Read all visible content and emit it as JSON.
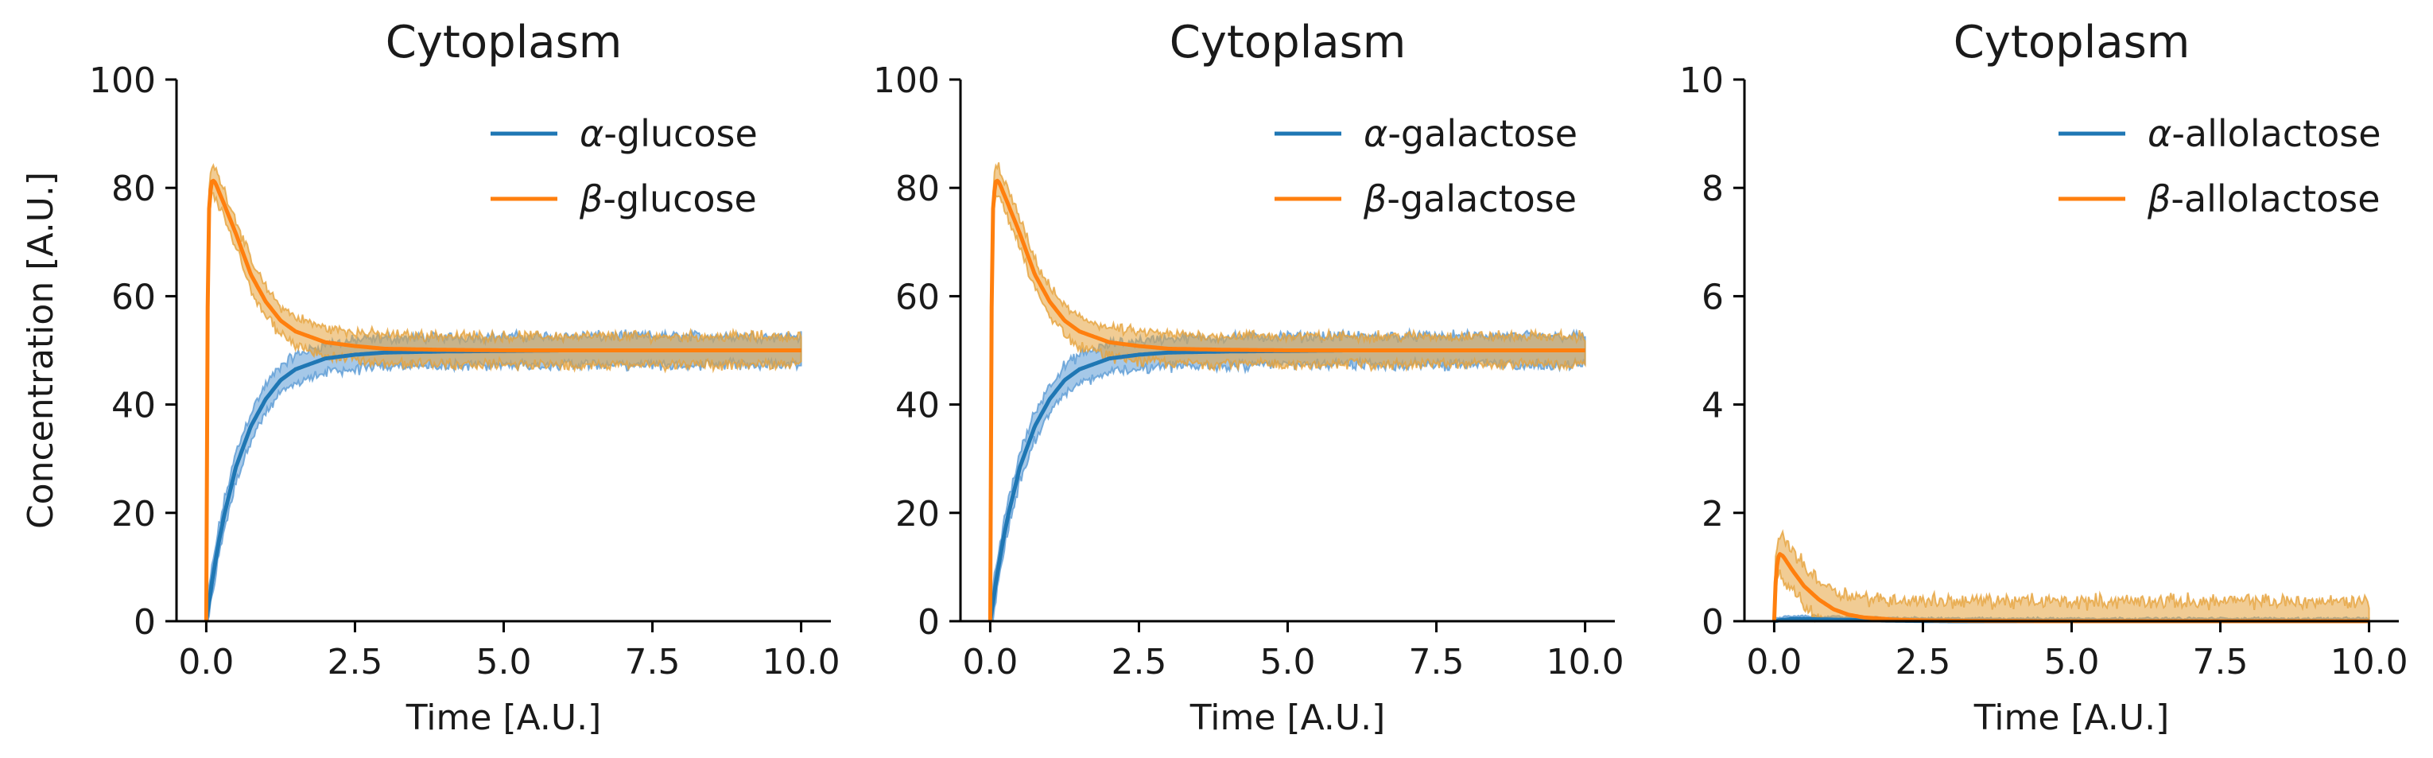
{
  "chart_data": [
    {
      "type": "line",
      "title": "Cytoplasm",
      "xlabel": "Time [A.U.]",
      "ylabel": "Concentration [A.U.]",
      "xlim": [
        -0.5,
        10.5
      ],
      "ylim": [
        0,
        100
      ],
      "xticks": [
        0.0,
        2.5,
        5.0,
        7.5,
        10.0
      ],
      "xtick_labels": [
        "0.0",
        "2.5",
        "5.0",
        "7.5",
        "10.0"
      ],
      "yticks": [
        0,
        20,
        40,
        60,
        80,
        100
      ],
      "ytick_labels": [
        "0",
        "20",
        "40",
        "60",
        "80",
        "100"
      ],
      "legend_position": "top-right",
      "grid": false,
      "series": [
        {
          "name": "α-glucose",
          "legend_prefix": "α",
          "legend_suffix": "-glucose",
          "color": "#1f77b4",
          "band_color": "#5b9bd5",
          "x": [
            0,
            0.1,
            0.2,
            0.3,
            0.5,
            0.75,
            1.0,
            1.25,
            1.5,
            2.0,
            2.5,
            3.0,
            4.0,
            5.0,
            6.0,
            7.0,
            8.0,
            9.0,
            10.0
          ],
          "values": [
            0,
            7.5,
            14,
            19.5,
            28.5,
            36,
            41,
            44.5,
            46.5,
            48.5,
            49.2,
            49.6,
            49.8,
            49.9,
            50,
            50,
            50,
            50,
            50
          ],
          "band": 2.5
        },
        {
          "name": "β-glucose",
          "legend_prefix": "β",
          "legend_suffix": "-glucose",
          "color": "#ff7f0e",
          "band_color": "#e6a23c",
          "x": [
            0,
            0.02,
            0.05,
            0.1,
            0.15,
            0.3,
            0.5,
            0.75,
            1.0,
            1.25,
            1.5,
            2.0,
            2.5,
            3.0,
            4.0,
            5.0,
            6.0,
            7.0,
            8.0,
            9.0,
            10.0
          ],
          "values": [
            0,
            55,
            78,
            81.5,
            81,
            77,
            71.5,
            64,
            59,
            55.5,
            53.5,
            51.5,
            50.8,
            50.3,
            50.1,
            50,
            50,
            50,
            50,
            50,
            50
          ],
          "band": 2.5
        }
      ]
    },
    {
      "type": "line",
      "title": "Cytoplasm",
      "xlabel": "Time [A.U.]",
      "ylabel": "",
      "xlim": [
        -0.5,
        10.5
      ],
      "ylim": [
        0,
        100
      ],
      "xticks": [
        0.0,
        2.5,
        5.0,
        7.5,
        10.0
      ],
      "xtick_labels": [
        "0.0",
        "2.5",
        "5.0",
        "7.5",
        "10.0"
      ],
      "yticks": [
        0,
        20,
        40,
        60,
        80,
        100
      ],
      "ytick_labels": [
        "0",
        "20",
        "40",
        "60",
        "80",
        "100"
      ],
      "legend_position": "top-right",
      "grid": false,
      "series": [
        {
          "name": "α-galactose",
          "legend_prefix": "α",
          "legend_suffix": "-galactose",
          "color": "#1f77b4",
          "band_color": "#5b9bd5",
          "x": [
            0,
            0.1,
            0.2,
            0.3,
            0.5,
            0.75,
            1.0,
            1.25,
            1.5,
            2.0,
            2.5,
            3.0,
            4.0,
            5.0,
            6.0,
            7.0,
            8.0,
            9.0,
            10.0
          ],
          "values": [
            0,
            7.5,
            14,
            19.5,
            28.5,
            36,
            41,
            44.5,
            46.5,
            48.5,
            49.2,
            49.6,
            49.8,
            49.9,
            50,
            50,
            50,
            50,
            50
          ],
          "band": 2.5
        },
        {
          "name": "β-galactose",
          "legend_prefix": "β",
          "legend_suffix": "-galactose",
          "color": "#ff7f0e",
          "band_color": "#e6a23c",
          "x": [
            0,
            0.02,
            0.05,
            0.1,
            0.15,
            0.3,
            0.5,
            0.75,
            1.0,
            1.25,
            1.5,
            2.0,
            2.5,
            3.0,
            4.0,
            5.0,
            6.0,
            7.0,
            8.0,
            9.0,
            10.0
          ],
          "values": [
            0,
            55,
            78,
            81.5,
            81,
            77,
            71.5,
            64,
            59,
            55.5,
            53.5,
            51.5,
            50.8,
            50.3,
            50.1,
            50,
            50,
            50,
            50,
            50,
            50
          ],
          "band": 2.5
        }
      ]
    },
    {
      "type": "line",
      "title": "Cytoplasm",
      "xlabel": "Time [A.U.]",
      "ylabel": "",
      "xlim": [
        -0.5,
        10.5
      ],
      "ylim": [
        0,
        10
      ],
      "xticks": [
        0.0,
        2.5,
        5.0,
        7.5,
        10.0
      ],
      "xtick_labels": [
        "0.0",
        "2.5",
        "5.0",
        "7.5",
        "10.0"
      ],
      "yticks": [
        0,
        2,
        4,
        6,
        8,
        10
      ],
      "ytick_labels": [
        "0",
        "2",
        "4",
        "6",
        "8",
        "10"
      ],
      "legend_position": "top-right",
      "grid": false,
      "series": [
        {
          "name": "α-allolactose",
          "legend_prefix": "α",
          "legend_suffix": "-allolactose",
          "color": "#1f77b4",
          "band_color": "#5b9bd5",
          "x": [
            0,
            0.1,
            0.3,
            0.5,
            1.0,
            2.0,
            3.0,
            5.0,
            7.5,
            10.0
          ],
          "values": [
            0,
            0.02,
            0.04,
            0.04,
            0.03,
            0.01,
            0,
            0,
            0,
            0
          ],
          "band": 0.05
        },
        {
          "name": "β-allolactose",
          "legend_prefix": "β",
          "legend_suffix": "-allolactose",
          "color": "#ff7f0e",
          "band_color": "#e6a23c",
          "x": [
            0,
            0.03,
            0.08,
            0.15,
            0.3,
            0.5,
            0.75,
            1.0,
            1.25,
            1.5,
            2.0,
            2.5,
            3.0,
            4.5,
            10.0
          ],
          "values": [
            0,
            0.9,
            1.25,
            1.2,
            0.95,
            0.65,
            0.4,
            0.22,
            0.12,
            0.07,
            0.03,
            0.015,
            0.008,
            0,
            0
          ],
          "band": 0.35
        }
      ]
    }
  ]
}
